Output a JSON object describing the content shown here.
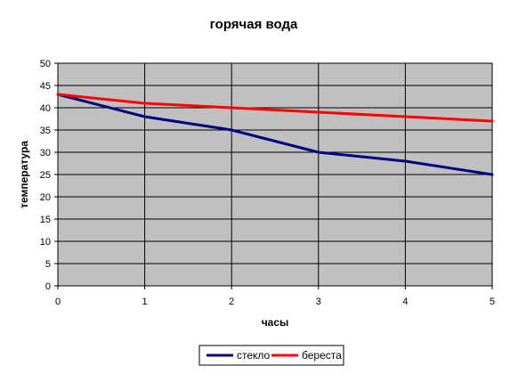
{
  "chart_data": {
    "type": "line",
    "title": "горячая вода",
    "xlabel": "часы",
    "ylabel": "температура",
    "x": [
      0,
      1,
      2,
      3,
      4,
      5
    ],
    "xlim": [
      0,
      5
    ],
    "ylim": [
      0,
      50
    ],
    "y_ticks": [
      0,
      5,
      10,
      15,
      20,
      25,
      30,
      35,
      40,
      45,
      50
    ],
    "x_ticks": [
      0,
      1,
      2,
      3,
      4,
      5
    ],
    "grid": true,
    "plot_background": "#c0c0c0",
    "legend_position": "bottom",
    "series": [
      {
        "name": "стекло",
        "color": "#000080",
        "values": [
          43,
          38,
          35,
          30,
          28,
          25
        ]
      },
      {
        "name": "береста",
        "color": "#ff0000",
        "values": [
          43,
          41,
          40,
          39,
          38,
          37
        ]
      }
    ]
  }
}
